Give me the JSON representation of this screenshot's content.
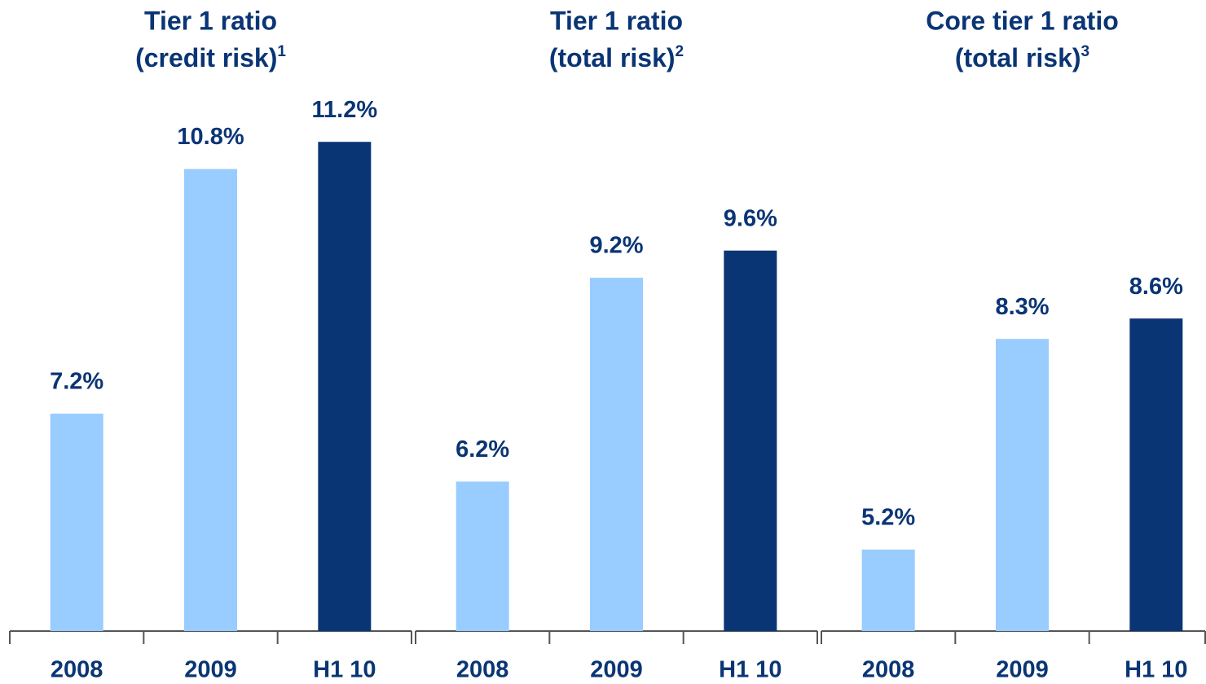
{
  "chart_data": [
    {
      "type": "bar",
      "title": "Tier 1 ratio",
      "subtitle": "(credit risk)",
      "title_note": "1",
      "categories": [
        "2008",
        "2009",
        "H1 10"
      ],
      "values": [
        7.2,
        10.8,
        11.2
      ],
      "value_labels": [
        "7.2%",
        "10.8%",
        "11.2%"
      ],
      "colors": [
        "#99ccff",
        "#99ccff",
        "#0a3575"
      ],
      "ylim": [
        4,
        13
      ]
    },
    {
      "type": "bar",
      "title": "Tier 1 ratio",
      "subtitle": "(total risk)",
      "title_note": "2",
      "categories": [
        "2008",
        "2009",
        "H1 10"
      ],
      "values": [
        6.2,
        9.2,
        9.6
      ],
      "value_labels": [
        "6.2%",
        "9.2%",
        "9.6%"
      ],
      "colors": [
        "#99ccff",
        "#99ccff",
        "#0a3575"
      ],
      "ylim": [
        4,
        13
      ]
    },
    {
      "type": "bar",
      "title": "Core tier 1 ratio",
      "subtitle": "(total risk)",
      "title_note": "3",
      "categories": [
        "2008",
        "2009",
        "H1 10"
      ],
      "values": [
        5.2,
        8.3,
        8.6
      ],
      "value_labels": [
        "5.2%",
        "8.3%",
        "8.6%"
      ],
      "colors": [
        "#99ccff",
        "#99ccff",
        "#0a3575"
      ],
      "ylim": [
        4,
        13
      ]
    }
  ]
}
